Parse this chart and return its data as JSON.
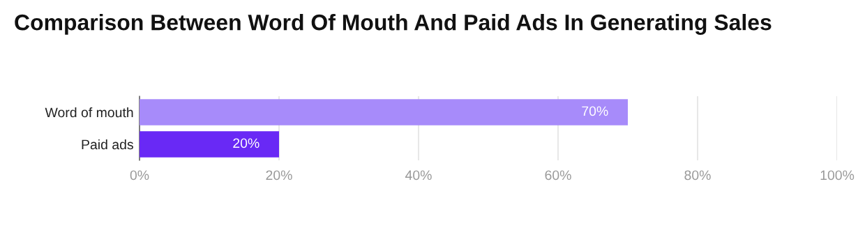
{
  "chart_data": {
    "type": "bar",
    "orientation": "horizontal",
    "title": "Comparison Between Word Of Mouth And Paid Ads In Generating Sales",
    "categories": [
      "Word of mouth",
      "Paid ads"
    ],
    "values": [
      70,
      20
    ],
    "colors": [
      "#a78bfa",
      "#6929f5"
    ],
    "value_labels": [
      "70%",
      "20%"
    ],
    "xlim": [
      0,
      100
    ],
    "xticks": [
      {
        "value": 0,
        "label": "0%"
      },
      {
        "value": 20,
        "label": "20%"
      },
      {
        "value": 40,
        "label": "40%"
      },
      {
        "value": 60,
        "label": "60%"
      },
      {
        "value": 80,
        "label": "80%"
      },
      {
        "value": 100,
        "label": "100%"
      }
    ],
    "grid": "x",
    "legend": false
  }
}
